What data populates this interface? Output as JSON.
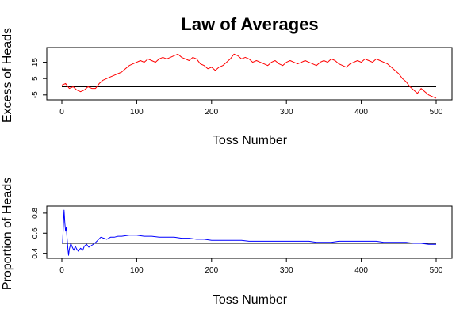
{
  "page": {
    "title": "Law of Averages"
  },
  "chart_data": [
    {
      "type": "line",
      "xlabel": "Toss Number",
      "ylabel": "Excess of Heads",
      "xlim": [
        0,
        500
      ],
      "ylim": [
        -8,
        24
      ],
      "xticks": [
        0,
        100,
        200,
        300,
        400,
        500
      ],
      "yticks": [
        -5,
        5,
        15
      ],
      "reference_line": 0,
      "grid": false,
      "series": [
        {
          "color": "#ff0000",
          "x": [
            0,
            5,
            10,
            15,
            20,
            25,
            30,
            35,
            40,
            45,
            50,
            55,
            60,
            65,
            70,
            75,
            80,
            85,
            90,
            95,
            100,
            105,
            110,
            115,
            120,
            125,
            130,
            135,
            140,
            145,
            150,
            155,
            160,
            165,
            170,
            175,
            180,
            185,
            190,
            195,
            200,
            205,
            210,
            215,
            220,
            225,
            230,
            235,
            240,
            245,
            250,
            255,
            260,
            265,
            270,
            275,
            280,
            285,
            290,
            295,
            300,
            305,
            310,
            315,
            320,
            325,
            330,
            335,
            340,
            345,
            350,
            355,
            360,
            365,
            370,
            375,
            380,
            385,
            390,
            395,
            400,
            405,
            410,
            415,
            420,
            425,
            430,
            435,
            440,
            445,
            450,
            455,
            460,
            465,
            470,
            475,
            480,
            485,
            490,
            495,
            500
          ],
          "y": [
            1,
            2,
            -1,
            0,
            -2,
            -3,
            -2,
            0,
            -1,
            -1,
            2,
            4,
            5,
            6,
            7,
            8,
            9,
            11,
            13,
            14,
            15,
            16,
            15,
            17,
            16,
            15,
            17,
            18,
            17,
            18,
            19,
            20,
            18,
            17,
            16,
            18,
            17,
            14,
            13,
            11,
            12,
            10,
            12,
            13,
            15,
            17,
            20,
            19,
            17,
            18,
            17,
            15,
            16,
            15,
            14,
            13,
            15,
            16,
            14,
            13,
            15,
            16,
            15,
            14,
            15,
            16,
            15,
            14,
            13,
            15,
            16,
            15,
            17,
            16,
            14,
            13,
            12,
            14,
            15,
            16,
            15,
            17,
            16,
            15,
            17,
            16,
            15,
            14,
            12,
            10,
            8,
            5,
            3,
            0,
            -2,
            -4,
            -1,
            -3,
            -5,
            -6,
            -7
          ]
        }
      ]
    },
    {
      "type": "line",
      "xlabel": "Toss Number",
      "ylabel": "Proportion of Heads",
      "xlim": [
        0,
        500
      ],
      "ylim": [
        0.35,
        0.87
      ],
      "xticks": [
        0,
        100,
        200,
        300,
        400,
        500
      ],
      "yticks": [
        0.4,
        0.6,
        0.8
      ],
      "reference_line": 0.5,
      "grid": false,
      "series": [
        {
          "color": "#0000ff",
          "x": [
            1,
            2,
            3,
            4,
            5,
            6,
            7,
            8,
            9,
            10,
            12,
            14,
            16,
            18,
            20,
            22,
            25,
            28,
            30,
            33,
            36,
            40,
            44,
            48,
            52,
            56,
            60,
            65,
            70,
            75,
            80,
            90,
            100,
            110,
            120,
            130,
            140,
            150,
            160,
            170,
            180,
            190,
            200,
            210,
            220,
            230,
            240,
            250,
            260,
            270,
            280,
            290,
            300,
            310,
            320,
            330,
            340,
            350,
            360,
            370,
            380,
            390,
            400,
            410,
            420,
            430,
            440,
            450,
            460,
            470,
            480,
            490,
            500
          ],
          "y": [
            0.5,
            0.67,
            0.83,
            0.7,
            0.62,
            0.66,
            0.55,
            0.45,
            0.38,
            0.44,
            0.5,
            0.46,
            0.43,
            0.47,
            0.44,
            0.42,
            0.45,
            0.43,
            0.47,
            0.49,
            0.46,
            0.48,
            0.5,
            0.53,
            0.56,
            0.55,
            0.54,
            0.56,
            0.56,
            0.57,
            0.57,
            0.58,
            0.58,
            0.57,
            0.57,
            0.56,
            0.56,
            0.56,
            0.55,
            0.55,
            0.54,
            0.54,
            0.53,
            0.53,
            0.53,
            0.53,
            0.53,
            0.52,
            0.52,
            0.52,
            0.52,
            0.52,
            0.52,
            0.52,
            0.52,
            0.52,
            0.51,
            0.51,
            0.51,
            0.52,
            0.52,
            0.52,
            0.52,
            0.52,
            0.52,
            0.51,
            0.51,
            0.51,
            0.51,
            0.5,
            0.5,
            0.49,
            0.49
          ]
        }
      ]
    }
  ]
}
